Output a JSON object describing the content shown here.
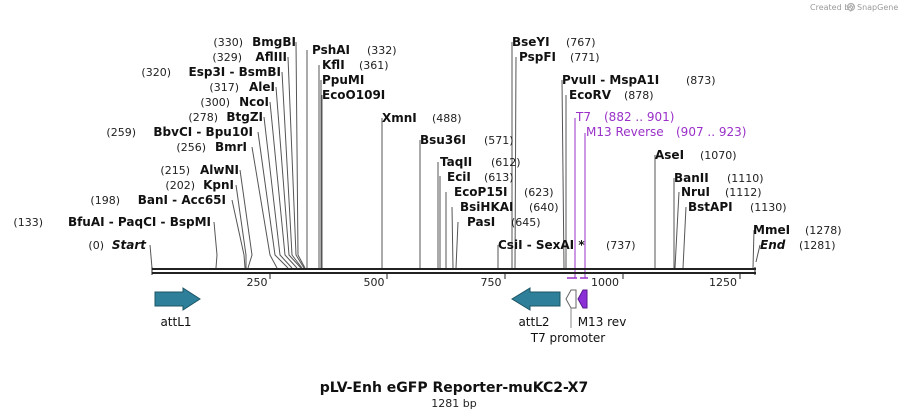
{
  "credit": {
    "created_by": "Created by",
    "brand": "SnapGene"
  },
  "sequence_length": 1281,
  "enzymes": [
    {
      "pos_label": "(330)",
      "name": "BmgBI",
      "site": 330
    },
    {
      "pos_label": "(329)",
      "name": "AflIII",
      "site": 329
    },
    {
      "pos_label": "(320)",
      "name": "Esp3I  -  BsmBI",
      "site": 320
    },
    {
      "pos_label": "(317)",
      "name": "AleI",
      "site": 317
    },
    {
      "pos_label": "(300)",
      "name": "NcoI",
      "site": 300
    },
    {
      "pos_label": "(278)",
      "name": "BtgZI",
      "site": 278
    },
    {
      "pos_label": "(259)",
      "name": "BbvCI  -  Bpu10I",
      "site": 259
    },
    {
      "pos_label": "(256)",
      "name": "BmrI",
      "site": 256
    },
    {
      "pos_label": "(215)",
      "name": "AlwNI",
      "site": 215
    },
    {
      "pos_label": "(202)",
      "name": "KpnI",
      "site": 202
    },
    {
      "pos_label": "(198)",
      "name": "BanI  -  Acc65I",
      "site": 198
    },
    {
      "pos_label": "(133)",
      "name": "BfuAI  -  PaqCI  -  BspMI",
      "site": 133
    },
    {
      "pos_label": "(0)",
      "name": "Start",
      "site": 0,
      "italic": true
    },
    {
      "pos_label": "(332)",
      "name": "PshAI",
      "site": 332,
      "right": true
    },
    {
      "pos_label": "(361)",
      "name": "KflI",
      "site": 361,
      "right": true
    },
    {
      "pos_label": "",
      "name": "PpuMI",
      "site": 365,
      "right": true
    },
    {
      "pos_label": "",
      "name": "EcoO109I",
      "site": 365,
      "right": true
    },
    {
      "pos_label": "(488)",
      "name": "XmnI",
      "site": 488,
      "right": true
    },
    {
      "pos_label": "(571)",
      "name": "Bsu36I",
      "site": 571,
      "right": true
    },
    {
      "pos_label": "(612)",
      "name": "TaqII",
      "site": 612,
      "right": true
    },
    {
      "pos_label": "(613)",
      "name": "EciI",
      "site": 613,
      "right": true
    },
    {
      "pos_label": "(623)",
      "name": "EcoP15I",
      "site": 623,
      "right": true
    },
    {
      "pos_label": "(640)",
      "name": "BsiHKAI",
      "site": 640,
      "right": true
    },
    {
      "pos_label": "(645)",
      "name": "PasI",
      "site": 645,
      "right": true
    },
    {
      "pos_label": "(737)",
      "name": "CsiI  -  SexAI *",
      "site": 737,
      "right": true
    },
    {
      "pos_label": "(767)",
      "name": "BseYI",
      "site": 767,
      "right": true
    },
    {
      "pos_label": "(771)",
      "name": "PspFI",
      "site": 771,
      "right": true
    },
    {
      "pos_label": "(873)",
      "name": "PvuII  -  MspA1I",
      "site": 873,
      "right": true
    },
    {
      "pos_label": "(878)",
      "name": "EcoRV",
      "site": 878,
      "right": true
    },
    {
      "pos_label": "(1070)",
      "name": "AseI",
      "site": 1070,
      "right": true
    },
    {
      "pos_label": "(1110)",
      "name": "BanII",
      "site": 1110,
      "right": true
    },
    {
      "pos_label": "(1112)",
      "name": "NruI",
      "site": 1112,
      "right": true
    },
    {
      "pos_label": "(1130)",
      "name": "BstAPI",
      "site": 1130,
      "right": true
    },
    {
      "pos_label": "(1278)",
      "name": "MmeI",
      "site": 1278,
      "right": true
    },
    {
      "pos_label": "(1281)",
      "name": "End",
      "site": 1281,
      "right": true,
      "italic": true
    }
  ],
  "primers": [
    {
      "name": "T7",
      "range": "(882 .. 901)",
      "start": 882,
      "end": 901,
      "color": "#9a30c8"
    },
    {
      "name": "M13 Reverse",
      "range": "(907 .. 923)",
      "start": 907,
      "end": 923,
      "color": "#9a30c8"
    }
  ],
  "ticks": [
    "250",
    "500",
    "750",
    "1000",
    "1250"
  ],
  "features": [
    {
      "name": "attL1",
      "color": "#2e7f99",
      "direction": "right"
    },
    {
      "name": "attL2",
      "color": "#2e7f99",
      "direction": "left"
    },
    {
      "name": "T7 promoter",
      "color": "#ffffff",
      "direction": "left"
    },
    {
      "name": "M13 rev",
      "color": "#8b2fd6",
      "direction": "left"
    }
  ],
  "title": "pLV-Enh eGFP Reporter-muKC2-X7",
  "subtitle": "1281 bp"
}
